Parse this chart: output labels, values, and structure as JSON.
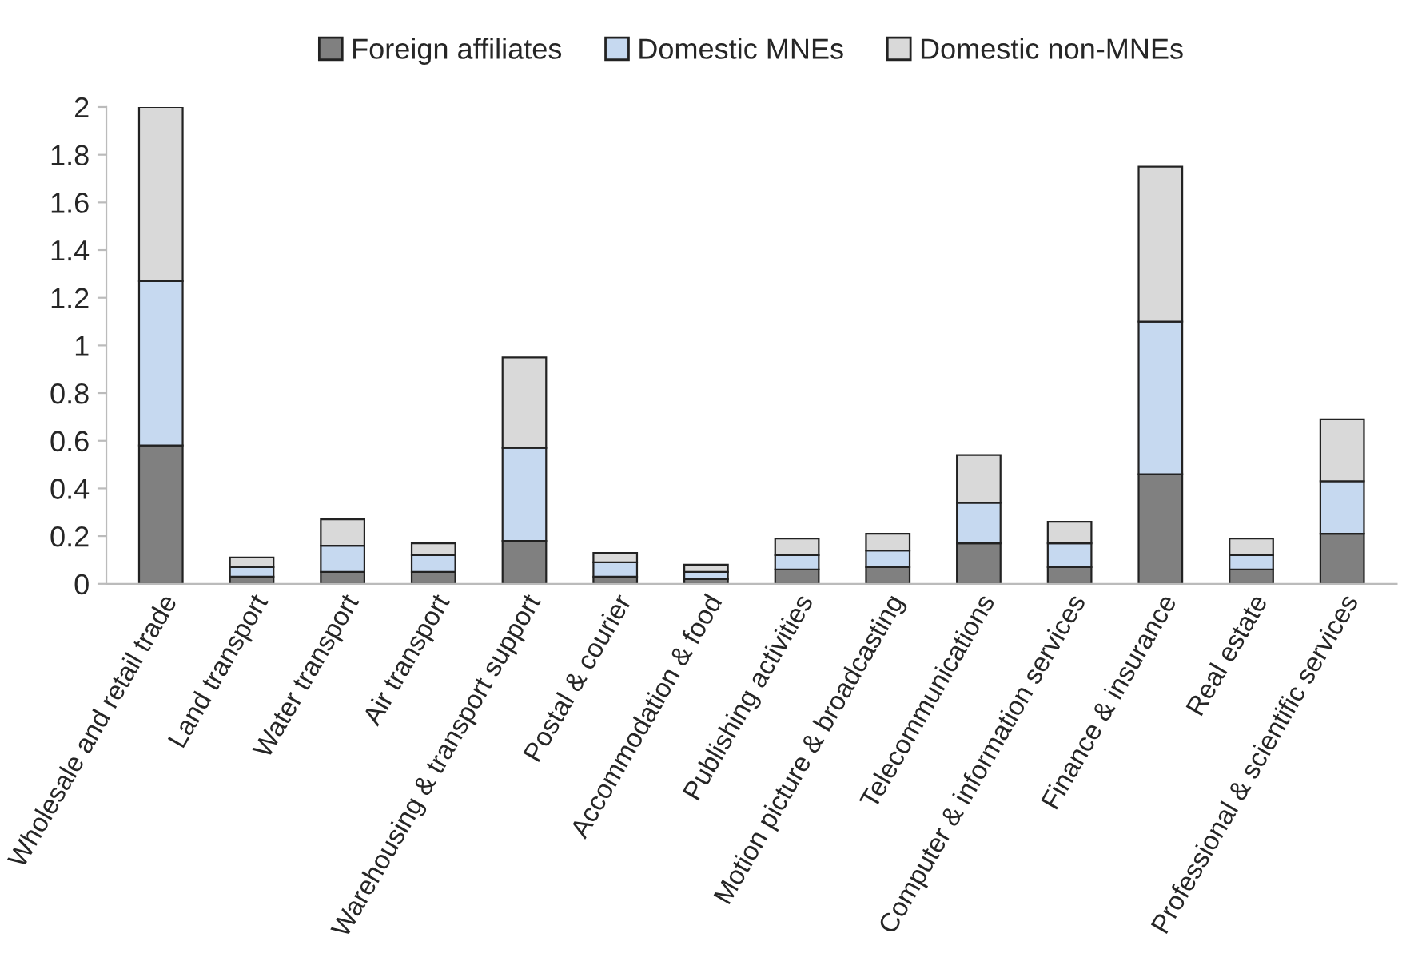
{
  "chart_data": {
    "type": "bar",
    "stacked": true,
    "legend": "top",
    "grid": false,
    "categories": [
      "Wholesale and retail trade",
      "Land transport",
      "Water transport",
      "Air transport",
      "Warehousing & transport support",
      "Postal & courier",
      "Accommodation & food",
      "Publishing activities",
      "Motion picture & broadcasting",
      "Telecommunications",
      "Computer & information services",
      "Finance & insurance",
      "Real estate",
      "Professional & scientific services"
    ],
    "series": [
      {
        "name": "Foreign affiliates",
        "color": "#808080",
        "values": [
          0.58,
          0.03,
          0.05,
          0.05,
          0.18,
          0.03,
          0.02,
          0.06,
          0.07,
          0.17,
          0.07,
          0.46,
          0.06,
          0.21
        ]
      },
      {
        "name": "Domestic MNEs",
        "color": "#c6d9f0",
        "values": [
          0.69,
          0.04,
          0.11,
          0.07,
          0.39,
          0.06,
          0.03,
          0.06,
          0.07,
          0.17,
          0.1,
          0.64,
          0.06,
          0.22
        ]
      },
      {
        "name": "Domestic non-MNEs",
        "color": "#d9d9d9",
        "values": [
          0.73,
          0.04,
          0.11,
          0.05,
          0.38,
          0.04,
          0.03,
          0.07,
          0.07,
          0.2,
          0.09,
          0.65,
          0.07,
          0.26
        ]
      }
    ],
    "ylim": [
      0,
      2
    ],
    "yticks": [
      0,
      0.2,
      0.4,
      0.6,
      0.8,
      1,
      1.2,
      1.4,
      1.6,
      1.8,
      2
    ]
  }
}
